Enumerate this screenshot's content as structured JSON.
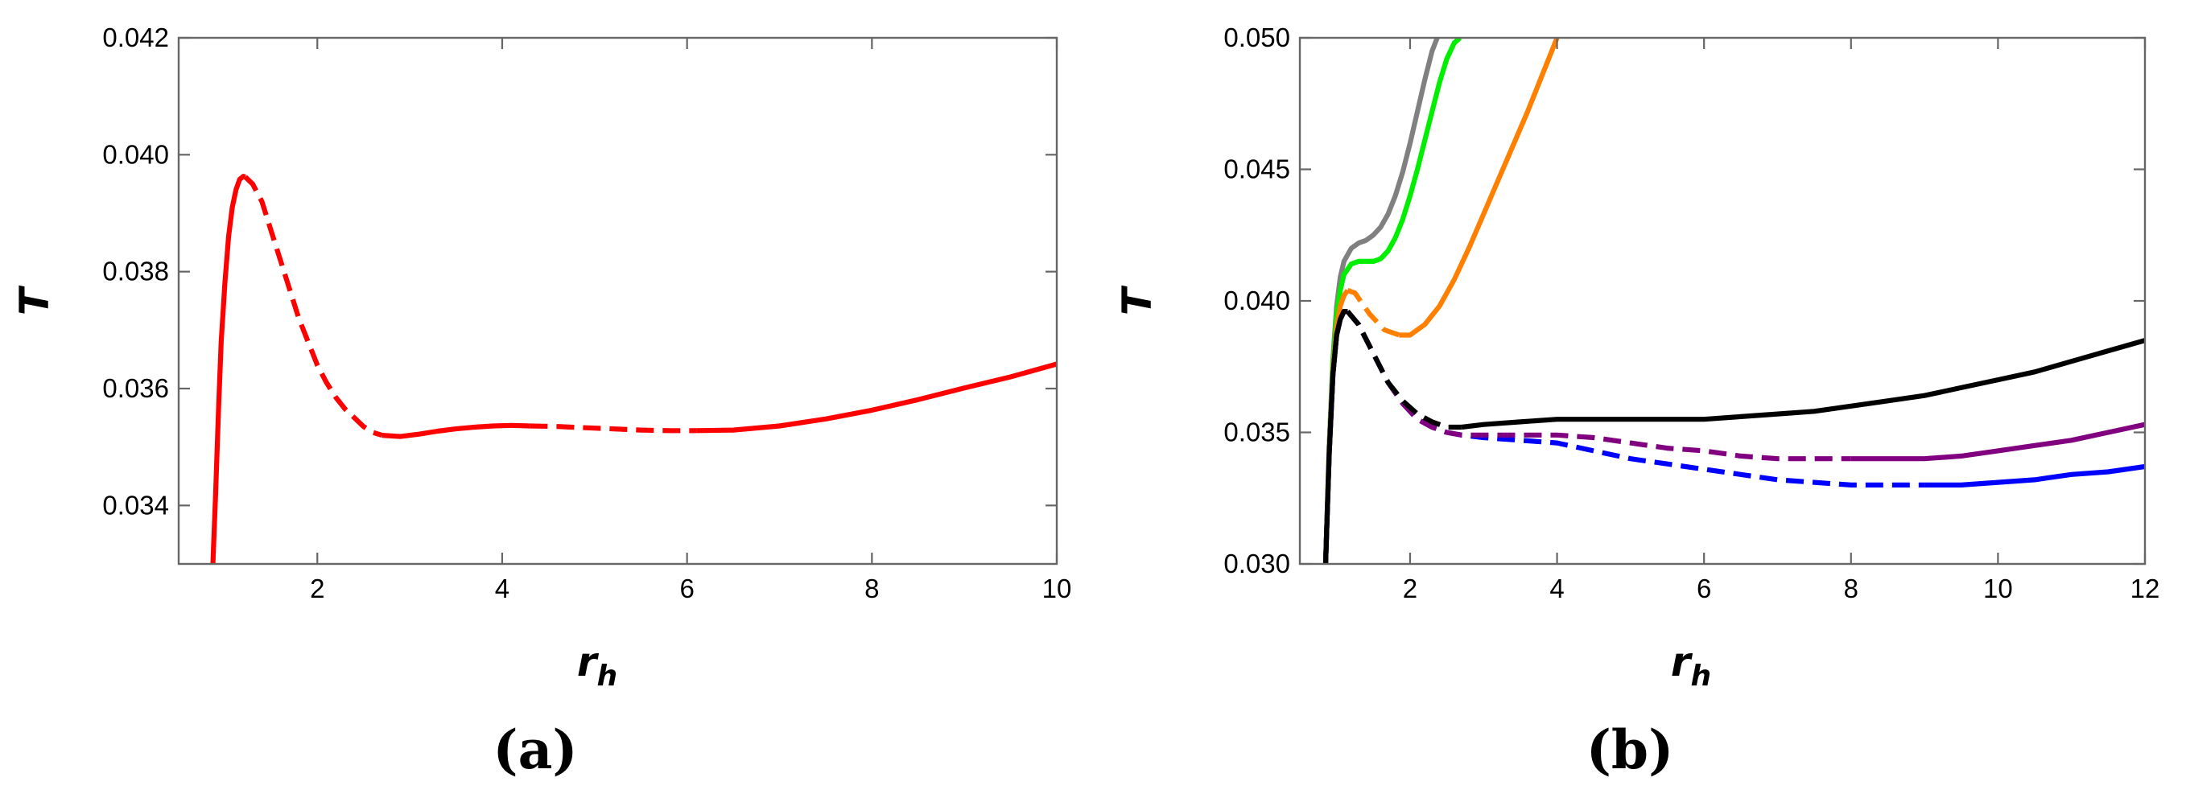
{
  "chart_data": [
    {
      "type": "line",
      "panel_label": "(a)",
      "xlabel": "r",
      "xlabel_sub": "h",
      "ylabel": "T",
      "xlim": [
        0.5,
        10
      ],
      "ylim": [
        0.033,
        0.042
      ],
      "x_ticks": [
        2,
        4,
        6,
        8,
        10
      ],
      "y_ticks": [
        0.034,
        0.036,
        0.038,
        0.04,
        0.042
      ],
      "y_tick_labels": [
        "0.034",
        "0.036",
        "0.038",
        "0.040",
        "0.042"
      ],
      "series": [
        {
          "color": "#ff0000",
          "segments": [
            {
              "style": "solid",
              "x": [
                0.87,
                0.9,
                0.93,
                0.96,
                1.0,
                1.04,
                1.08,
                1.12,
                1.16,
                1.2,
                1.22
              ],
              "y": [
                0.033,
                0.0342,
                0.0356,
                0.0368,
                0.0378,
                0.0386,
                0.0391,
                0.0394,
                0.03958,
                0.03963,
                0.03962
              ]
            },
            {
              "style": "dashed",
              "x": [
                1.22,
                1.3,
                1.4,
                1.5,
                1.6,
                1.7,
                1.8,
                1.9,
                2.0,
                2.1,
                2.2,
                2.3,
                2.4,
                2.5,
                2.6,
                2.7
              ],
              "y": [
                0.03962,
                0.0395,
                0.0392,
                0.0387,
                0.0382,
                0.0377,
                0.0372,
                0.0368,
                0.0364,
                0.0361,
                0.03585,
                0.03565,
                0.0355,
                0.03535,
                0.03525,
                0.0352
              ]
            },
            {
              "style": "solid",
              "x": [
                2.7,
                2.9,
                3.1,
                3.3,
                3.5,
                3.7,
                3.9,
                4.1,
                4.3
              ],
              "y": [
                0.0352,
                0.03518,
                0.03522,
                0.03527,
                0.03531,
                0.03534,
                0.03536,
                0.03537,
                0.03536
              ]
            },
            {
              "style": "dashed",
              "x": [
                4.3,
                4.6,
                4.9,
                5.2,
                5.5,
                5.8,
                6.1
              ],
              "y": [
                0.03536,
                0.03535,
                0.03533,
                0.03531,
                0.03529,
                0.03528,
                0.03528
              ]
            },
            {
              "style": "solid",
              "x": [
                6.1,
                6.5,
                7.0,
                7.5,
                8.0,
                8.5,
                9.0,
                9.5,
                10.0
              ],
              "y": [
                0.03528,
                0.03529,
                0.03536,
                0.03548,
                0.03563,
                0.03581,
                0.03601,
                0.0362,
                0.03642
              ]
            }
          ]
        }
      ]
    },
    {
      "type": "line",
      "panel_label": "(b)",
      "xlabel": "r",
      "xlabel_sub": "h",
      "ylabel": "T",
      "xlim": [
        0.5,
        12
      ],
      "ylim": [
        0.03,
        0.05
      ],
      "x_ticks": [
        2,
        4,
        6,
        8,
        10,
        12
      ],
      "y_ticks": [
        0.03,
        0.035,
        0.04,
        0.045,
        0.05
      ],
      "y_tick_labels": [
        "0.030",
        "0.035",
        "0.040",
        "0.045",
        "0.050"
      ],
      "series": [
        {
          "color": "#808080",
          "segments": [
            {
              "style": "solid",
              "x": [
                0.85,
                0.9,
                0.95,
                1.0,
                1.05,
                1.1,
                1.2,
                1.3,
                1.4,
                1.5,
                1.6,
                1.7,
                1.8,
                1.9,
                2.0,
                2.1,
                2.2,
                2.3,
                2.37
              ],
              "y": [
                0.03,
                0.0345,
                0.0378,
                0.0398,
                0.0409,
                0.0415,
                0.042,
                0.0422,
                0.0423,
                0.0425,
                0.0428,
                0.0433,
                0.044,
                0.0449,
                0.046,
                0.0472,
                0.0484,
                0.0495,
                0.05
              ]
            }
          ]
        },
        {
          "color": "#00ee00",
          "segments": [
            {
              "style": "solid",
              "x": [
                0.85,
                0.9,
                0.95,
                1.0,
                1.05,
                1.1,
                1.2,
                1.3,
                1.4,
                1.5,
                1.6,
                1.7,
                1.8,
                1.9,
                2.0,
                2.1,
                2.2,
                2.3,
                2.4,
                2.5,
                2.6,
                2.68
              ],
              "y": [
                0.03,
                0.0345,
                0.0377,
                0.0395,
                0.0404,
                0.041,
                0.0414,
                0.0415,
                0.0415,
                0.0415,
                0.0416,
                0.0419,
                0.0424,
                0.0431,
                0.044,
                0.045,
                0.0461,
                0.0472,
                0.0483,
                0.0492,
                0.0498,
                0.05
              ]
            }
          ]
        },
        {
          "color": "#ff8000",
          "segments": [
            {
              "style": "solid",
              "x": [
                0.85,
                0.9,
                0.95,
                1.0,
                1.05,
                1.1,
                1.15
              ],
              "y": [
                0.03,
                0.0344,
                0.0374,
                0.039,
                0.0398,
                0.0402,
                0.0404
              ]
            },
            {
              "style": "dashed",
              "x": [
                1.15,
                1.25,
                1.35,
                1.45,
                1.55,
                1.65,
                1.75,
                1.85
              ],
              "y": [
                0.0404,
                0.0403,
                0.0399,
                0.0395,
                0.0392,
                0.0389,
                0.0388,
                0.0387
              ]
            },
            {
              "style": "solid",
              "x": [
                1.85,
                2.0,
                2.2,
                2.4,
                2.6,
                2.8,
                3.0,
                3.2,
                3.4,
                3.6,
                3.8,
                4.0
              ],
              "y": [
                0.0387,
                0.0387,
                0.0391,
                0.0398,
                0.0408,
                0.042,
                0.0433,
                0.0446,
                0.0459,
                0.0472,
                0.0486,
                0.05
              ]
            }
          ]
        },
        {
          "color": "#0000ff",
          "segments": [
            {
              "style": "solid",
              "x": [
                0.85,
                0.9,
                0.95,
                1.0,
                1.05,
                1.1,
                1.15
              ],
              "y": [
                0.03,
                0.0342,
                0.0372,
                0.0387,
                0.0393,
                0.0396,
                0.0396
              ]
            },
            {
              "style": "dashed",
              "x": [
                1.15,
                1.3,
                1.5,
                1.7,
                1.9,
                2.1,
                2.3,
                2.5,
                2.7,
                3.0,
                3.5,
                4.0,
                4.5,
                5.0,
                5.5,
                6.0,
                6.5,
                7.0,
                7.5,
                8.0,
                8.5,
                9.0
              ],
              "y": [
                0.0396,
                0.0391,
                0.038,
                0.0369,
                0.0361,
                0.0355,
                0.0352,
                0.035,
                0.0349,
                0.0348,
                0.0347,
                0.0346,
                0.0343,
                0.034,
                0.0338,
                0.0336,
                0.0334,
                0.0332,
                0.0331,
                0.033,
                0.033,
                0.033
              ]
            },
            {
              "style": "solid",
              "x": [
                9.0,
                9.5,
                10.0,
                10.5,
                11.0,
                11.5,
                12.0
              ],
              "y": [
                0.033,
                0.033,
                0.0331,
                0.0332,
                0.0334,
                0.0335,
                0.0337
              ]
            }
          ]
        },
        {
          "color": "#800080",
          "segments": [
            {
              "style": "solid",
              "x": [
                0.85,
                0.9,
                0.95,
                1.0,
                1.05,
                1.1,
                1.15
              ],
              "y": [
                0.03,
                0.0342,
                0.0372,
                0.0387,
                0.0393,
                0.0396,
                0.0396
              ]
            },
            {
              "style": "dashed",
              "x": [
                1.15,
                1.3,
                1.5,
                1.7,
                1.9,
                2.1,
                2.3,
                2.5,
                2.7,
                3.0,
                3.5,
                4.0,
                4.5,
                5.0,
                5.5,
                6.0,
                6.5,
                7.0,
                7.5,
                8.0
              ],
              "y": [
                0.0396,
                0.0391,
                0.038,
                0.0369,
                0.0361,
                0.0355,
                0.0352,
                0.035,
                0.0349,
                0.0349,
                0.0349,
                0.0349,
                0.0348,
                0.0346,
                0.0344,
                0.0343,
                0.0341,
                0.034,
                0.034,
                0.034
              ]
            },
            {
              "style": "solid",
              "x": [
                8.0,
                8.5,
                9.0,
                9.5,
                10.0,
                10.5,
                11.0,
                11.5,
                12.0
              ],
              "y": [
                0.034,
                0.034,
                0.034,
                0.0341,
                0.0343,
                0.0345,
                0.0347,
                0.035,
                0.0353
              ]
            }
          ]
        },
        {
          "color": "#000000",
          "segments": [
            {
              "style": "solid",
              "x": [
                0.85,
                0.9,
                0.95,
                1.0,
                1.05,
                1.1,
                1.15
              ],
              "y": [
                0.03,
                0.0342,
                0.0372,
                0.0387,
                0.0393,
                0.0396,
                0.0396
              ]
            },
            {
              "style": "dashed",
              "x": [
                1.15,
                1.3,
                1.5,
                1.7,
                1.9,
                2.1,
                2.3,
                2.5,
                2.7
              ],
              "y": [
                0.0396,
                0.0391,
                0.038,
                0.0369,
                0.0362,
                0.0357,
                0.0354,
                0.0352,
                0.0352
              ]
            },
            {
              "style": "solid",
              "x": [
                2.7,
                3.0,
                3.5,
                4.0,
                4.5,
                5.0,
                5.5,
                6.0,
                6.5,
                7.0,
                7.5,
                8.0,
                8.5,
                9.0,
                9.5,
                10.0,
                10.5,
                11.0,
                11.5,
                12.0
              ],
              "y": [
                0.0352,
                0.0353,
                0.0354,
                0.0355,
                0.0355,
                0.0355,
                0.0355,
                0.0355,
                0.0356,
                0.0357,
                0.0358,
                0.036,
                0.0362,
                0.0364,
                0.0367,
                0.037,
                0.0373,
                0.0377,
                0.0381,
                0.0385
              ]
            }
          ]
        }
      ]
    }
  ]
}
